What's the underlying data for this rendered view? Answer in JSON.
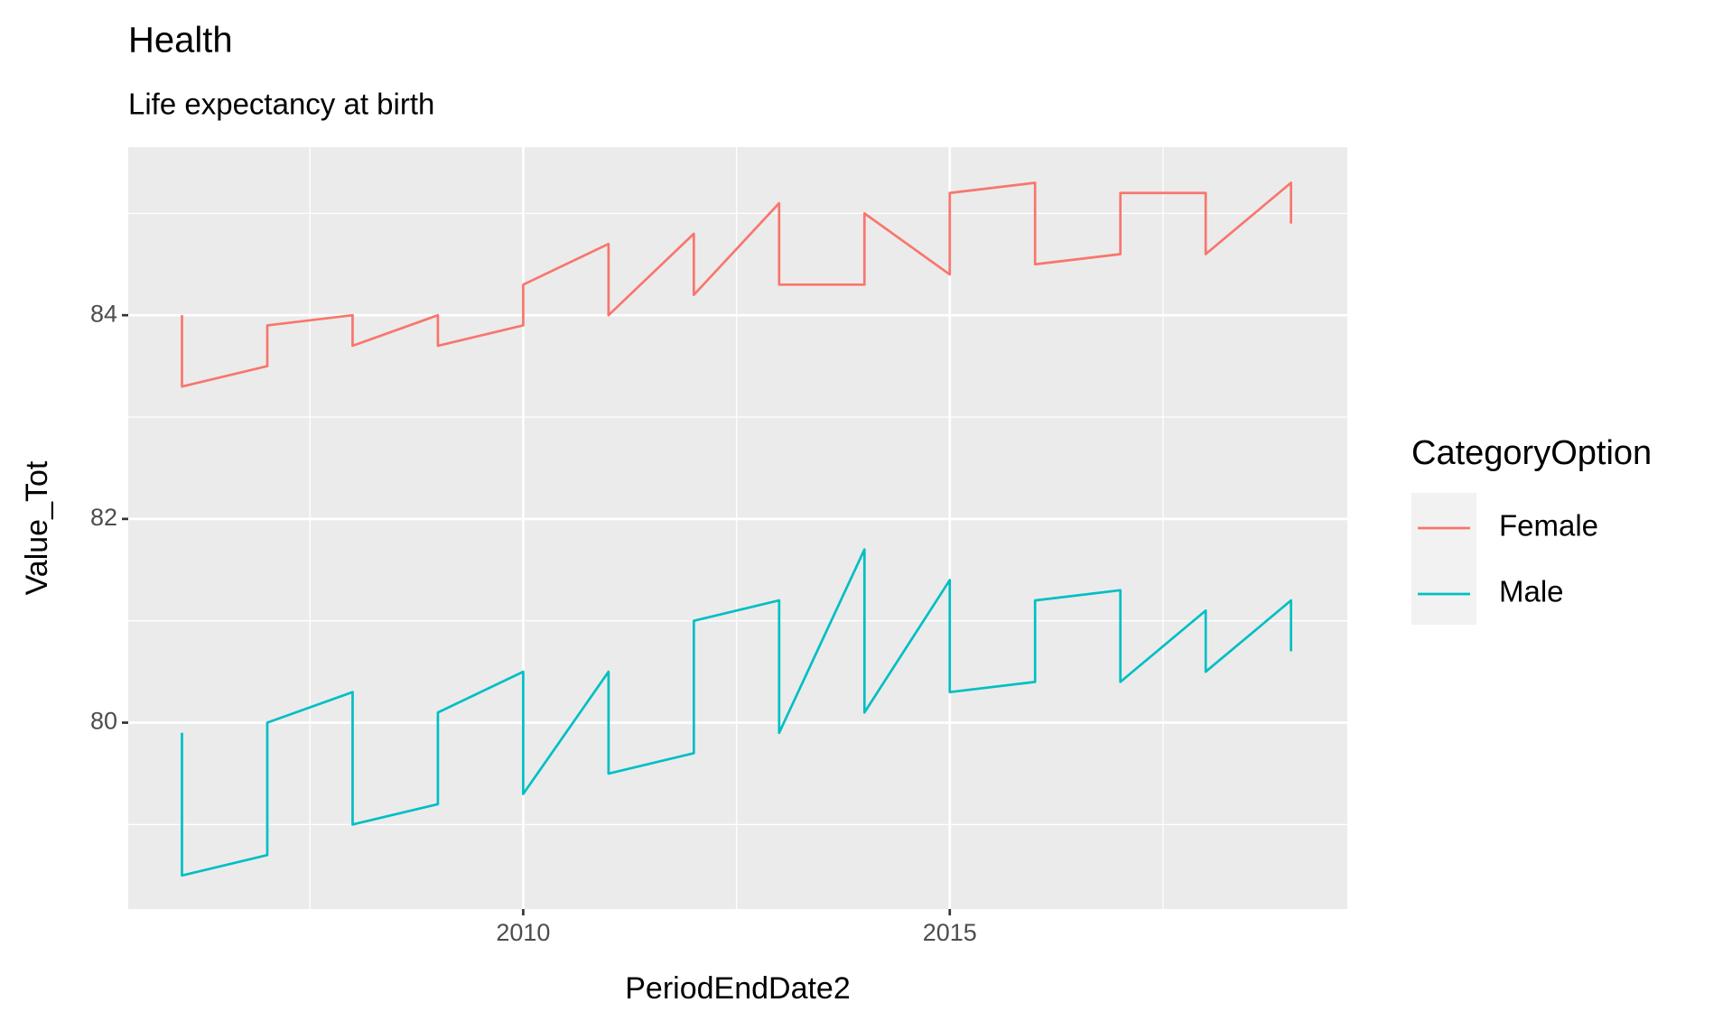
{
  "chart_data": {
    "type": "line",
    "title": "Health",
    "subtitle": "Life expectancy at birth",
    "x_label": "PeriodEndDate2",
    "y_label": "Value_Tot",
    "legend_title": "CategoryOption",
    "legend": "right",
    "grid": true,
    "x": [
      2006,
      2006,
      2007,
      2007,
      2008,
      2008,
      2009,
      2009,
      2010,
      2010,
      2011,
      2011,
      2012,
      2012,
      2013,
      2013,
      2014,
      2014,
      2015,
      2015,
      2016,
      2016,
      2017,
      2017,
      2018,
      2018,
      2019,
      2019
    ],
    "series": [
      {
        "name": "Female",
        "color": "#f8766d",
        "values": [
          84.0,
          83.3,
          83.5,
          83.9,
          84.0,
          83.7,
          84.0,
          83.7,
          83.9,
          84.3,
          84.7,
          84.0,
          84.8,
          84.2,
          85.1,
          84.3,
          84.3,
          85.0,
          84.4,
          85.2,
          85.3,
          84.5,
          84.6,
          85.2,
          85.2,
          84.6,
          85.3,
          84.9
        ]
      },
      {
        "name": "Male",
        "color": "#00bfc4",
        "values": [
          79.9,
          78.5,
          78.7,
          80.0,
          80.3,
          79.0,
          79.2,
          80.1,
          80.5,
          79.3,
          80.5,
          79.5,
          79.7,
          81.0,
          81.2,
          79.9,
          81.7,
          80.1,
          81.4,
          80.3,
          80.4,
          81.2,
          81.3,
          80.4,
          81.1,
          80.5,
          81.2,
          80.7
        ]
      }
    ],
    "xlim": [
      2005.37,
      2019.66
    ],
    "xticks": [
      2010,
      2015
    ],
    "ylim": [
      78.17,
      85.65
    ],
    "yticks": [
      80,
      82,
      84
    ]
  }
}
